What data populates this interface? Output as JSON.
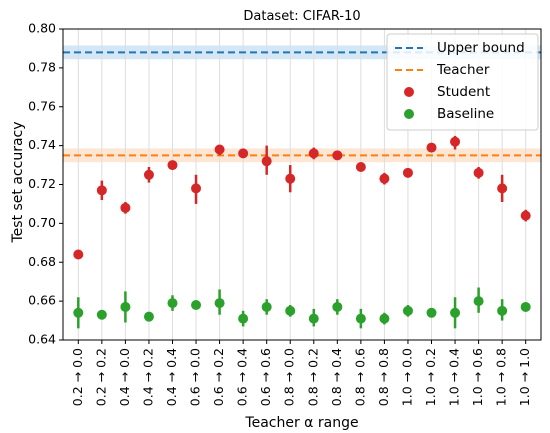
{
  "chart_data": {
    "type": "scatter",
    "title": "Dataset: CIFAR-10",
    "xlabel": "Teacher α range",
    "ylabel": "Test set accuracy",
    "ylim": [
      0.64,
      0.8
    ],
    "yticks": [
      0.64,
      0.66,
      0.68,
      0.7,
      0.72,
      0.74,
      0.76,
      0.78,
      0.8
    ],
    "ytick_labels": [
      "0.64",
      "0.66",
      "0.68",
      "0.70",
      "0.72",
      "0.74",
      "0.76",
      "0.78",
      "0.80"
    ],
    "categories": [
      "0.2 → 0.0",
      "0.2 → 0.2",
      "0.4 → 0.0",
      "0.4 → 0.2",
      "0.4 → 0.4",
      "0.6 → 0.0",
      "0.6 → 0.2",
      "0.6 → 0.4",
      "0.6 → 0.6",
      "0.8 → 0.0",
      "0.8 → 0.2",
      "0.8 → 0.4",
      "0.8 → 0.6",
      "0.8 → 0.8",
      "1.0 → 0.0",
      "1.0 → 0.2",
      "1.0 → 0.4",
      "1.0 → 0.6",
      "1.0 → 0.8",
      "1.0 → 1.0"
    ],
    "grid": {
      "vertical": true,
      "horizontal": false
    },
    "legend_position": "top-right",
    "reference_lines": [
      {
        "name": "Upper bound",
        "value": 0.788,
        "band": [
          0.786,
          0.79
        ],
        "color": "#1f77b4",
        "band_color": "#cfe4f5"
      },
      {
        "name": "Teacher",
        "value": 0.735,
        "band": [
          0.733,
          0.737
        ],
        "color": "#ff7f0e",
        "band_color": "#fde4cf"
      }
    ],
    "series": [
      {
        "name": "Student",
        "color": "#d62728",
        "values": [
          0.684,
          0.717,
          0.708,
          0.725,
          0.73,
          0.718,
          0.738,
          0.736,
          0.732,
          0.723,
          0.736,
          0.735,
          0.729,
          0.723,
          0.726,
          0.739,
          0.742,
          0.726,
          0.718,
          0.704
        ],
        "lower": [
          0.682,
          0.712,
          0.705,
          0.721,
          0.729,
          0.71,
          0.735,
          0.735,
          0.725,
          0.716,
          0.733,
          0.734,
          0.728,
          0.72,
          0.725,
          0.738,
          0.738,
          0.723,
          0.711,
          0.701
        ],
        "upper": [
          0.686,
          0.722,
          0.711,
          0.729,
          0.731,
          0.725,
          0.74,
          0.737,
          0.74,
          0.73,
          0.739,
          0.736,
          0.73,
          0.726,
          0.727,
          0.74,
          0.745,
          0.729,
          0.725,
          0.707
        ]
      },
      {
        "name": "Baseline",
        "color": "#2ca02c",
        "values": [
          0.654,
          0.653,
          0.657,
          0.652,
          0.659,
          0.658,
          0.659,
          0.651,
          0.657,
          0.655,
          0.651,
          0.657,
          0.651,
          0.651,
          0.655,
          0.654,
          0.654,
          0.66,
          0.655,
          0.657
        ],
        "lower": [
          0.646,
          0.652,
          0.649,
          0.651,
          0.655,
          0.657,
          0.653,
          0.647,
          0.653,
          0.652,
          0.647,
          0.653,
          0.646,
          0.648,
          0.652,
          0.653,
          0.646,
          0.654,
          0.65,
          0.656
        ],
        "upper": [
          0.662,
          0.654,
          0.665,
          0.653,
          0.663,
          0.659,
          0.666,
          0.655,
          0.661,
          0.658,
          0.656,
          0.661,
          0.656,
          0.654,
          0.658,
          0.655,
          0.662,
          0.667,
          0.661,
          0.658
        ]
      }
    ]
  }
}
